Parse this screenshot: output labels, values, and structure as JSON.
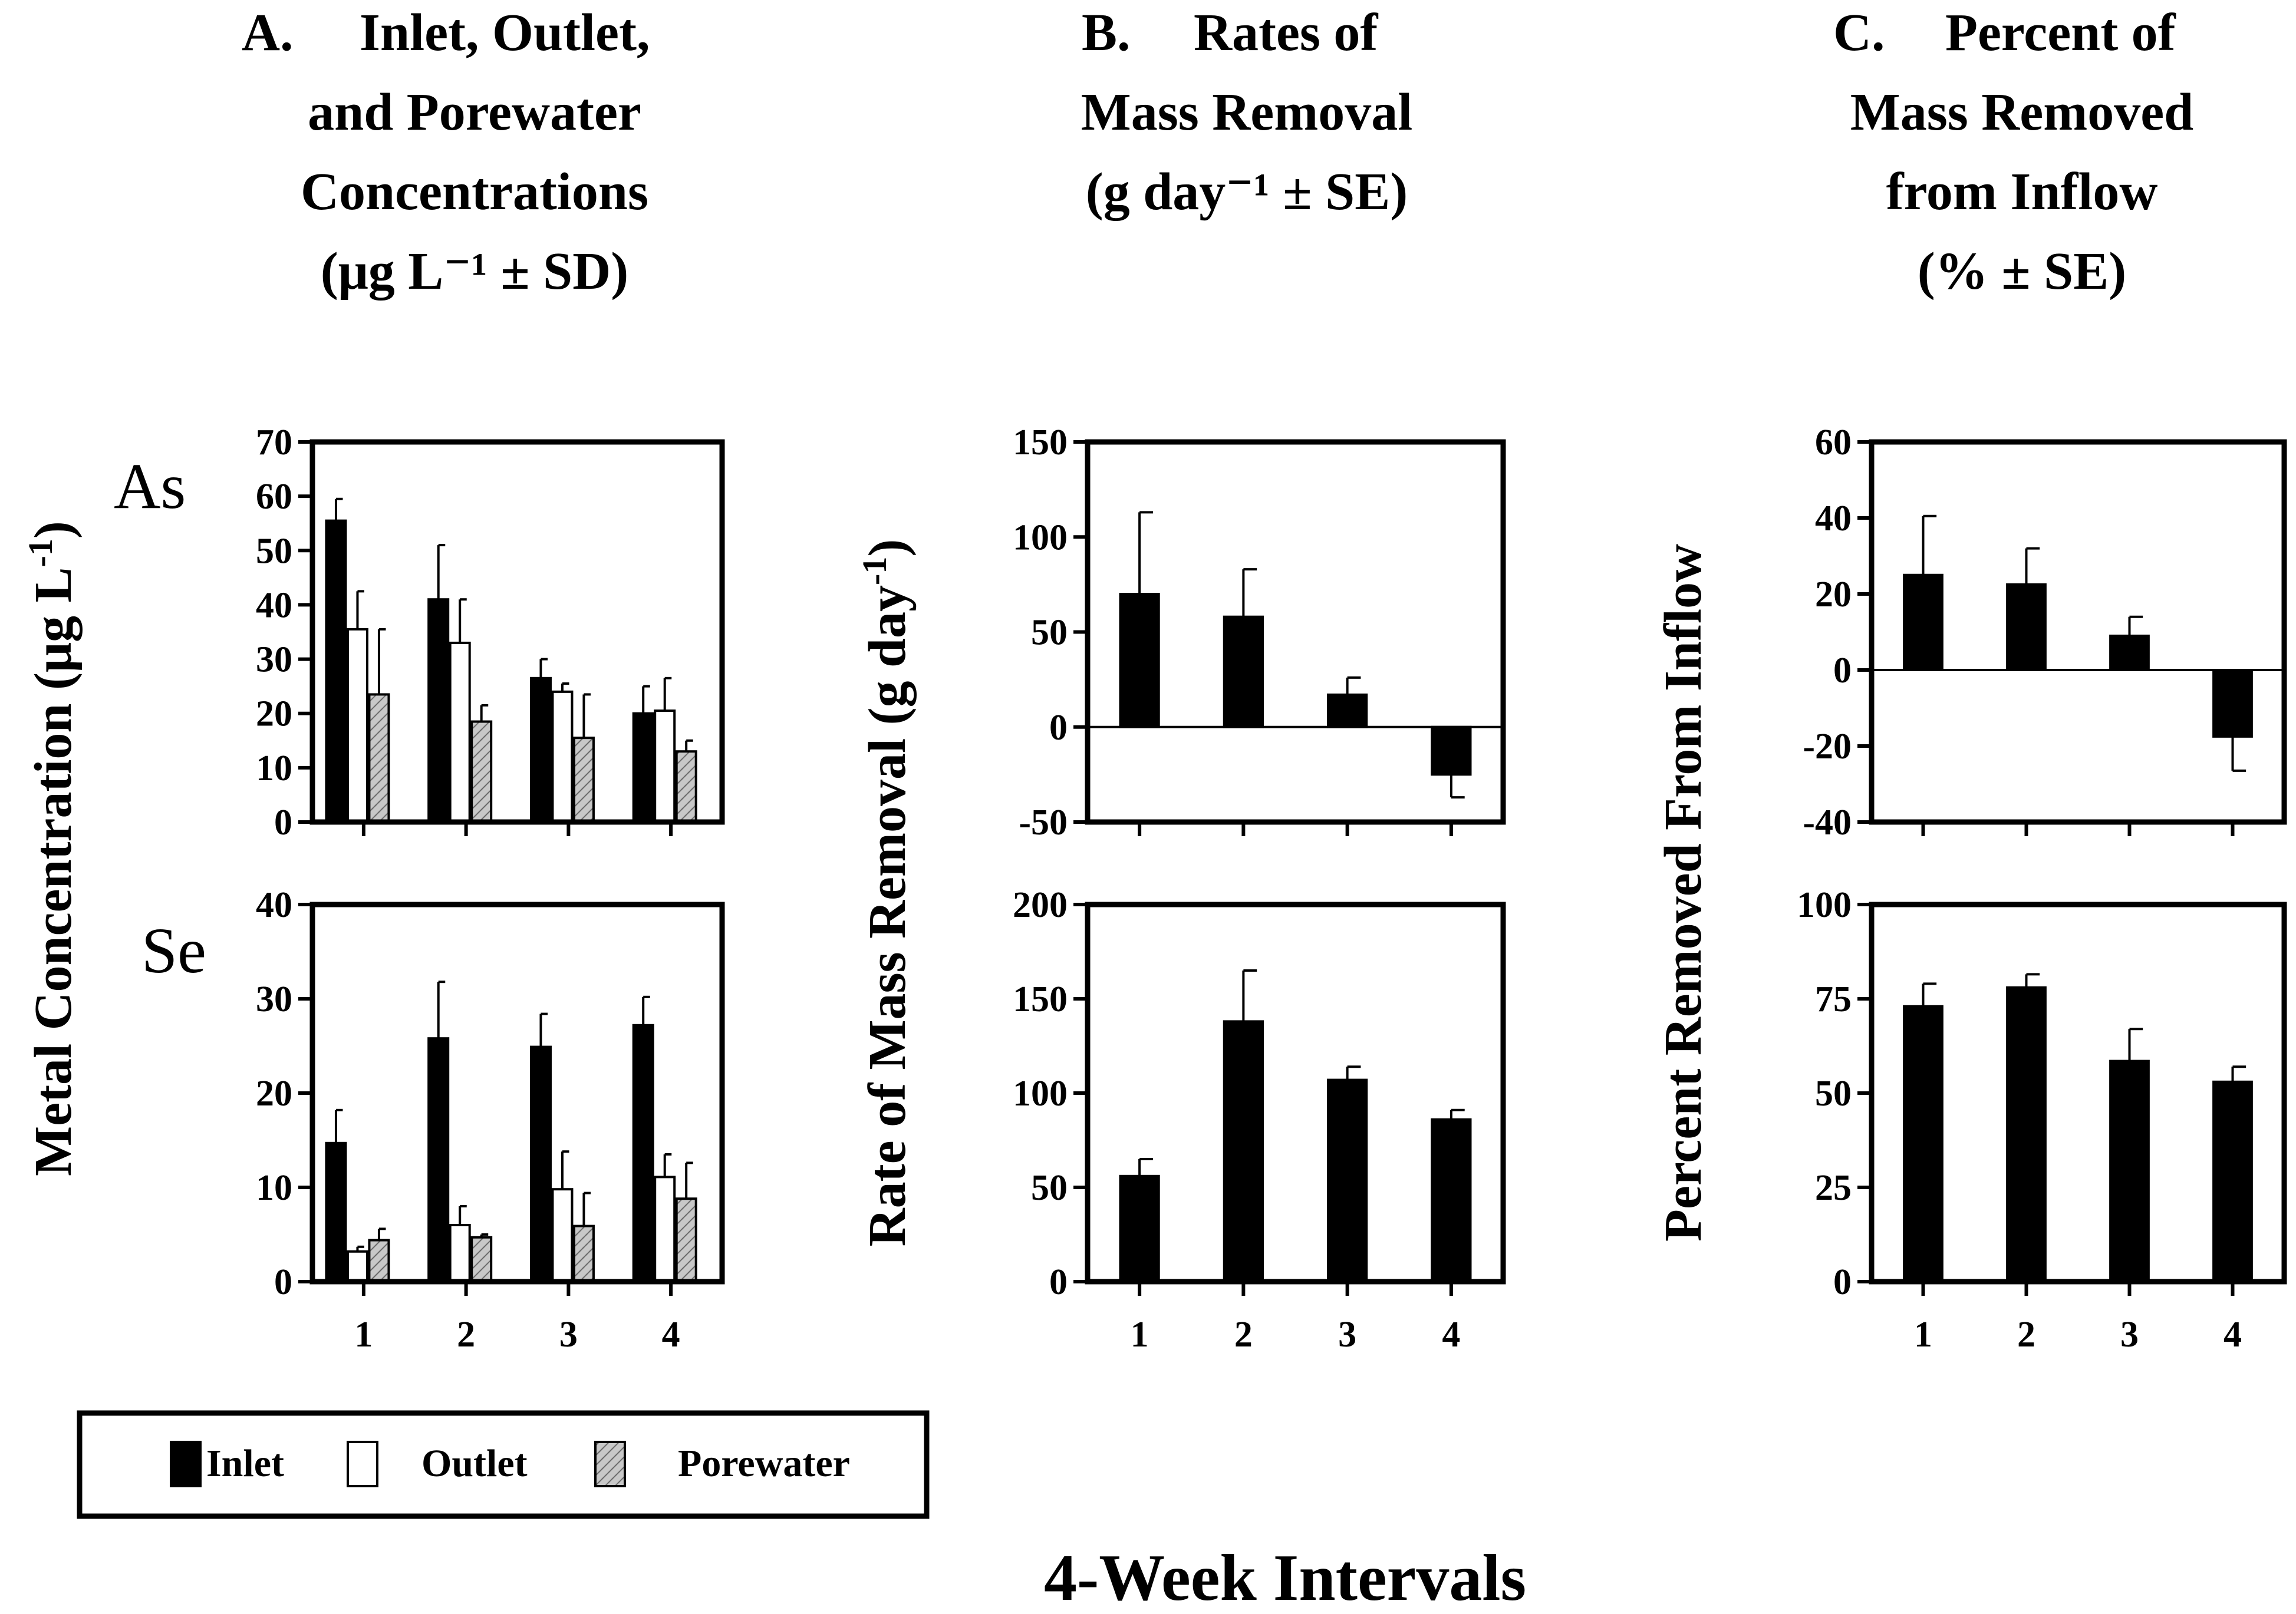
{
  "colors": {
    "inlet": "#000000",
    "outlet": "#ffffff",
    "porewater": "#c8c8c8",
    "axis": "#000000"
  },
  "titles": {
    "A": {
      "letter": "A.",
      "lines": [
        "Inlet, Outlet,",
        "and Porewater",
        "Concentrations",
        "(μg L⁻¹ ± SD)"
      ]
    },
    "B": {
      "letter": "B.",
      "lines": [
        "Rates of",
        "Mass Removal",
        "(g day⁻¹ ± SE)"
      ]
    },
    "C": {
      "letter": "C.",
      "lines": [
        "Percent of",
        "Mass Removed",
        "from Inflow",
        "(% ± SE)"
      ]
    }
  },
  "y_labels": {
    "A": {
      "text": "Metal Concentration (μg L",
      "sup": "-1",
      "close": ")"
    },
    "B": {
      "text": "Rate of Mass Removal (g day",
      "sup": "-1",
      "close": ")"
    },
    "C": {
      "text": "Percent Removed From Inflow"
    }
  },
  "element_labels": {
    "as": "As",
    "se": "Se"
  },
  "x_axis_title": "4-Week Intervals",
  "legend": {
    "items": [
      {
        "key": "inlet",
        "label": "Inlet"
      },
      {
        "key": "outlet",
        "label": "Outlet"
      },
      {
        "key": "porewater",
        "label": "Porewater"
      }
    ]
  },
  "chart_data": [
    {
      "id": "A-As",
      "type": "bar",
      "element": "As",
      "categories": [
        "1",
        "2",
        "3",
        "4"
      ],
      "ylim": [
        0,
        70
      ],
      "yticks": [
        0,
        10,
        20,
        30,
        40,
        50,
        60,
        70
      ],
      "show_xticks": false,
      "series": [
        {
          "name": "Inlet",
          "key": "inlet",
          "values": [
            55.5,
            41,
            26.5,
            20
          ],
          "errors": [
            4,
            10,
            3.5,
            5
          ]
        },
        {
          "name": "Outlet",
          "key": "outlet",
          "values": [
            35.5,
            33,
            24,
            20.5
          ],
          "errors": [
            7,
            8,
            1.5,
            6
          ]
        },
        {
          "name": "Porewater",
          "key": "porewater",
          "values": [
            23.5,
            18.5,
            15.5,
            13
          ],
          "errors": [
            12,
            3,
            8,
            2
          ]
        }
      ]
    },
    {
      "id": "A-Se",
      "type": "bar",
      "element": "Se",
      "categories": [
        "1",
        "2",
        "3",
        "4"
      ],
      "ylim": [
        0,
        40
      ],
      "yticks": [
        0,
        10,
        20,
        30,
        40
      ],
      "show_xticks": true,
      "series": [
        {
          "name": "Inlet",
          "key": "inlet",
          "values": [
            14.7,
            25.8,
            24.9,
            27.2
          ],
          "errors": [
            3.5,
            6,
            3.5,
            3
          ]
        },
        {
          "name": "Outlet",
          "key": "outlet",
          "values": [
            3.2,
            6,
            9.8,
            11.1
          ],
          "errors": [
            0.5,
            2,
            4,
            2.4
          ]
        },
        {
          "name": "Porewater",
          "key": "porewater",
          "values": [
            4.4,
            4.7,
            5.9,
            8.8
          ],
          "errors": [
            1.2,
            0.3,
            3.5,
            3.8
          ]
        }
      ]
    },
    {
      "id": "B-As",
      "type": "bar",
      "categories": [
        "1",
        "2",
        "3",
        "4"
      ],
      "ylim": [
        -50,
        150
      ],
      "yticks": [
        -50,
        0,
        50,
        100,
        150
      ],
      "show_xticks": false,
      "series": [
        {
          "key": "inlet",
          "values": [
            70,
            58,
            17,
            -25
          ],
          "errors": [
            43,
            25,
            9,
            12
          ]
        }
      ]
    },
    {
      "id": "B-Se",
      "type": "bar",
      "categories": [
        "1",
        "2",
        "3",
        "4"
      ],
      "ylim": [
        0,
        200
      ],
      "yticks": [
        0,
        50,
        100,
        150,
        200
      ],
      "show_xticks": true,
      "series": [
        {
          "key": "inlet",
          "values": [
            56,
            138,
            107,
            86
          ],
          "errors": [
            9,
            27,
            7,
            5
          ]
        }
      ]
    },
    {
      "id": "C-As",
      "type": "bar",
      "categories": [
        "1",
        "2",
        "3",
        "4"
      ],
      "ylim": [
        -40,
        60
      ],
      "yticks": [
        -40,
        -20,
        0,
        20,
        40,
        60
      ],
      "show_xticks": false,
      "series": [
        {
          "key": "inlet",
          "values": [
            25,
            22.5,
            9,
            -17.5
          ],
          "errors": [
            15.5,
            9.5,
            5,
            9
          ]
        }
      ]
    },
    {
      "id": "C-Se",
      "type": "bar",
      "categories": [
        "1",
        "2",
        "3",
        "4"
      ],
      "ylim": [
        0,
        100
      ],
      "yticks": [
        0,
        25,
        50,
        75,
        100
      ],
      "show_xticks": true,
      "series": [
        {
          "key": "inlet",
          "values": [
            73,
            78,
            58.5,
            53
          ],
          "errors": [
            6,
            3.5,
            8.5,
            4
          ]
        }
      ]
    }
  ]
}
